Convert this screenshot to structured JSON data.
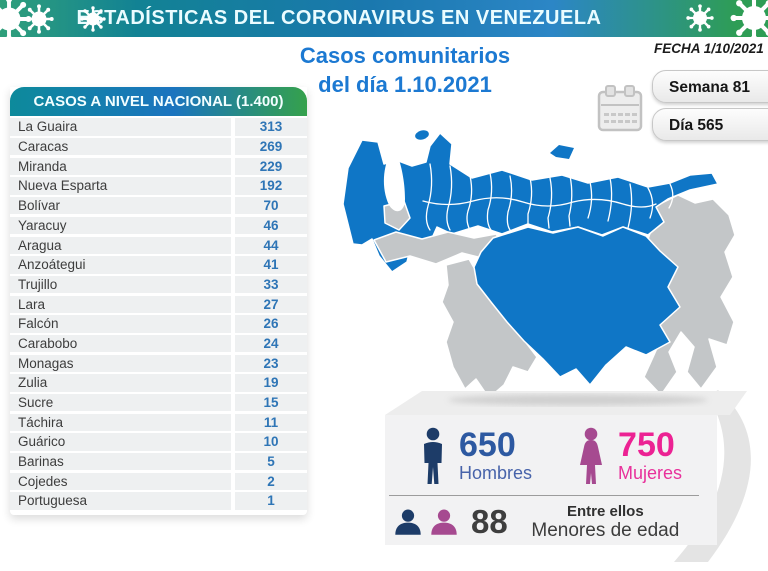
{
  "header": {
    "title": "ESTADÍSTICAS DEL CORONAVIRUS EN VENEZUELA"
  },
  "subtitle": {
    "line1": "Casos comunitarios",
    "line2": "del día 1.10.2021"
  },
  "date_info": {
    "fecha": "FECHA 1/10/2021",
    "semana": "Semana 81",
    "dia": "Día 565"
  },
  "icons": {
    "virus": "virus-icon",
    "calendar": "calendar-icon",
    "man": "man-icon",
    "woman": "woman-icon",
    "busts": "children-busts-icon"
  },
  "national_cases": {
    "title": "CASOS A NIVEL NACIONAL (1.400)",
    "rows": [
      {
        "state": "La Guaira",
        "cases": "313"
      },
      {
        "state": "Caracas",
        "cases": "269"
      },
      {
        "state": "Miranda",
        "cases": "229"
      },
      {
        "state": "Nueva Esparta",
        "cases": "192"
      },
      {
        "state": "Bolívar",
        "cases": "70"
      },
      {
        "state": "Yaracuy",
        "cases": "46"
      },
      {
        "state": "Aragua",
        "cases": "44"
      },
      {
        "state": "Anzoátegui",
        "cases": "41"
      },
      {
        "state": "Trujillo",
        "cases": "33"
      },
      {
        "state": "Lara",
        "cases": "27"
      },
      {
        "state": "Falcón",
        "cases": "26"
      },
      {
        "state": "Carabobo",
        "cases": "24"
      },
      {
        "state": "Monagas",
        "cases": "23"
      },
      {
        "state": "Zulia",
        "cases": "19"
      },
      {
        "state": "Sucre",
        "cases": "15"
      },
      {
        "state": "Táchira",
        "cases": "11"
      },
      {
        "state": "Guárico",
        "cases": "10"
      },
      {
        "state": "Barinas",
        "cases": "5"
      },
      {
        "state": "Cojedes",
        "cases": "2"
      },
      {
        "state": "Portuguesa",
        "cases": "1"
      }
    ]
  },
  "demographics": {
    "men": {
      "value": "650",
      "label": "Hombres"
    },
    "women": {
      "value": "750",
      "label": "Mujeres"
    },
    "minors": {
      "value": "88",
      "label_top": "Entre ellos",
      "label_bottom": "Menores de edad"
    }
  },
  "colors": {
    "banner_teal": "#128294",
    "banner_blue": "#1d74ba",
    "banner_green": "#2e9d55",
    "subtitle_blue": "#1c79d2",
    "table_value_blue": "#2e75b6",
    "map_highlight_blue": "#0f76c6",
    "map_muted_gray": "#c3c6c8",
    "men_navy": "#1d3c68",
    "women_plum": "#a64a90",
    "women_pink": "#ec2293"
  },
  "chart_data": {
    "type": "table",
    "title": "CASOS A NIVEL NACIONAL (1.400)",
    "total": 1400,
    "date": "1.10.2021",
    "week": 81,
    "day": 565,
    "categories": [
      "La Guaira",
      "Caracas",
      "Miranda",
      "Nueva Esparta",
      "Bolívar",
      "Yaracuy",
      "Aragua",
      "Anzoátegui",
      "Trujillo",
      "Lara",
      "Falcón",
      "Carabobo",
      "Monagas",
      "Zulia",
      "Sucre",
      "Táchira",
      "Guárico",
      "Barinas",
      "Cojedes",
      "Portuguesa"
    ],
    "values": [
      313,
      269,
      229,
      192,
      70,
      46,
      44,
      41,
      33,
      27,
      26,
      24,
      23,
      19,
      15,
      11,
      10,
      5,
      2,
      1
    ],
    "demographics": {
      "hombres": 650,
      "mujeres": 750,
      "menores_de_edad": 88
    },
    "map": {
      "type": "choropleth-illustration",
      "highlight_color": "#0f76c6",
      "muted_color": "#c3c6c8"
    }
  }
}
